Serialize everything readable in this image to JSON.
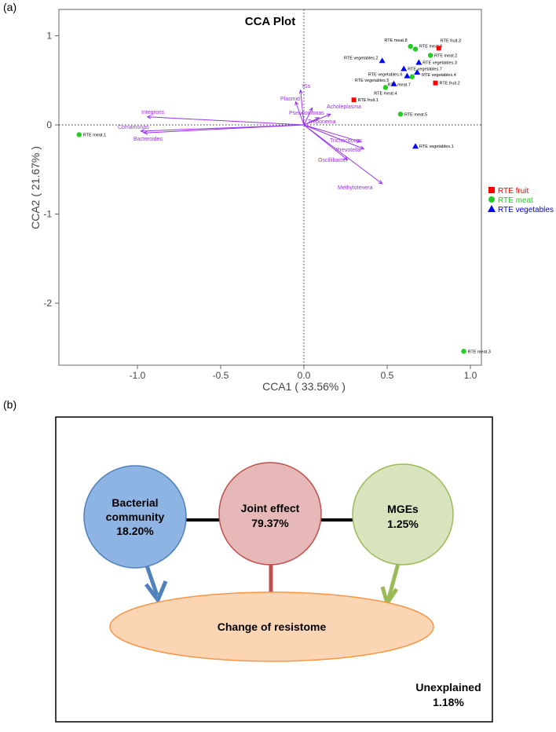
{
  "panel_labels": {
    "a": "(a)",
    "b": "(b)"
  },
  "chart_data": {
    "type": "scatter",
    "title": "CCA Plot",
    "xlabel": "CCA1 ( 33.56% )",
    "ylabel": "CCA2 ( 21.67% )",
    "xlim": [
      -1.45,
      1.07
    ],
    "ylim": [
      -2.68,
      1.05
    ],
    "xticks": [
      -1.0,
      -0.5,
      0.0,
      0.5,
      1.0
    ],
    "xtick_labels": [
      "-1.0",
      "-0.5",
      "0.0",
      "0.5",
      "1.0"
    ],
    "yticks": [
      1,
      0,
      -1,
      -2
    ],
    "ytick_labels": [
      "1",
      "0",
      "-1",
      "-2"
    ],
    "legend_position": "right",
    "groups": [
      {
        "name": "RTE fruit",
        "color": "#ff0000",
        "marker": "square"
      },
      {
        "name": "RTE meat",
        "color": "#22cc22",
        "marker": "circle"
      },
      {
        "name": "RTE vegetables",
        "color": "#0000ff",
        "marker": "triangle"
      }
    ],
    "points": [
      {
        "label": "RTE meat.1",
        "group": 1,
        "x": -1.35,
        "y": -0.11
      },
      {
        "label": "RTE meat.3",
        "group": 1,
        "x": 0.96,
        "y": -2.54
      },
      {
        "label": "RTE meat.5",
        "group": 1,
        "x": 0.58,
        "y": 0.12
      },
      {
        "label": "RTE vegetables.1",
        "group": 2,
        "x": 0.67,
        "y": -0.24
      },
      {
        "label": "RTE fruit.1",
        "group": 0,
        "x": 0.3,
        "y": 0.28
      },
      {
        "label": "RTE meat.4",
        "group": 1,
        "x": 0.49,
        "y": 0.42
      },
      {
        "label": "RTE vegetables.5",
        "group": 2,
        "x": 0.54,
        "y": 0.46
      },
      {
        "label": "RTE meat.7",
        "group": 1,
        "x": 0.65,
        "y": 0.54
      },
      {
        "label": "RTE fruit.2",
        "group": 0,
        "x": 0.79,
        "y": 0.47
      },
      {
        "label": "RTE vegetables.6",
        "group": 2,
        "x": 0.62,
        "y": 0.55
      },
      {
        "label": "RTE vegetables.4",
        "group": 2,
        "x": 0.68,
        "y": 0.59
      },
      {
        "label": "RTE vegetables.7",
        "group": 2,
        "x": 0.6,
        "y": 0.63
      },
      {
        "label": "RTE vegetables.3",
        "group": 2,
        "x": 0.69,
        "y": 0.7
      },
      {
        "label": "RTE vegetables.2",
        "group": 2,
        "x": 0.47,
        "y": 0.72
      },
      {
        "label": "RTE meat.8",
        "group": 1,
        "x": 0.64,
        "y": 0.88
      },
      {
        "label": "RTE meat.6",
        "group": 1,
        "x": 0.67,
        "y": 0.85
      },
      {
        "label": "RTE fruit.3",
        "group": 0,
        "x": 0.81,
        "y": 0.86
      },
      {
        "label": "RTE meat.2",
        "group": 1,
        "x": 0.76,
        "y": 0.78
      }
    ],
    "arrows": [
      {
        "label": "Integrons",
        "x": -0.94,
        "y": 0.09
      },
      {
        "label": "Comamonas",
        "x": -0.98,
        "y": -0.07
      },
      {
        "label": "Bacteroides",
        "x": -0.96,
        "y": -0.09
      },
      {
        "label": "ISs",
        "x": -0.02,
        "y": 0.39
      },
      {
        "label": "Plasmid",
        "x": -0.05,
        "y": 0.26
      },
      {
        "label": "Pseudomonas",
        "x": 0.05,
        "y": 0.19
      },
      {
        "label": "Acholeplasma",
        "x": 0.16,
        "y": 0.12
      },
      {
        "label": "Treponema",
        "x": 0.09,
        "y": 0.08
      },
      {
        "label": "Trichococcus",
        "x": 0.34,
        "y": -0.19
      },
      {
        "label": "Prevotella",
        "x": 0.36,
        "y": -0.27
      },
      {
        "label": "Oscillibacter",
        "x": 0.26,
        "y": -0.39
      },
      {
        "label": "Methylotenera",
        "x": 0.47,
        "y": -0.66
      }
    ],
    "arrow_color": "#9933ee"
  },
  "diagram": {
    "bacterial": {
      "line1": "Bacterial",
      "line2": "community",
      "value": "18.20%",
      "fill": "#8eb4e3",
      "stroke": "#4f81bd"
    },
    "joint": {
      "line1": "Joint effect",
      "value": "79.37%",
      "fill": "#e6b9b8",
      "stroke": "#c0504d"
    },
    "mges": {
      "line1": "MGEs",
      "value": "1.25%",
      "fill": "#d7e4bd",
      "stroke": "#9bbb59"
    },
    "resistome": {
      "label": "Change of resistome",
      "fill": "#fcd5b5",
      "stroke": "#f79646"
    },
    "unexplained": {
      "label": "Unexplained",
      "value": "1.18%"
    }
  }
}
